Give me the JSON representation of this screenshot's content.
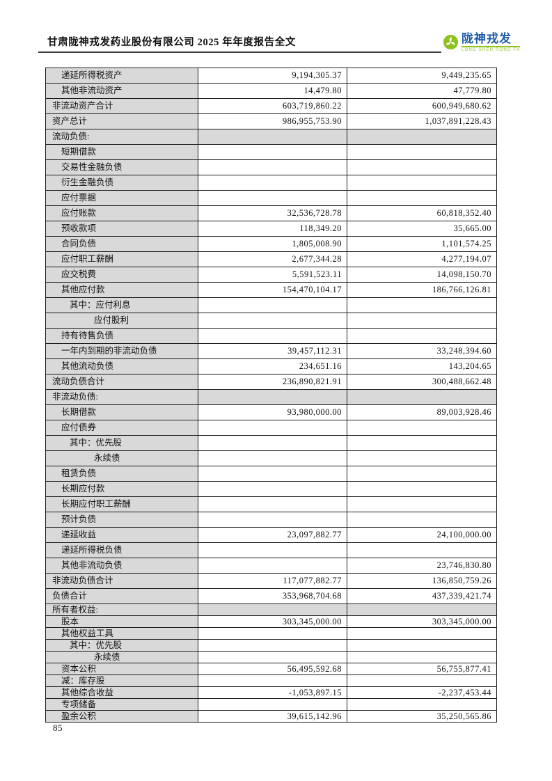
{
  "header": {
    "title": "甘肃陇神戎发药业股份有限公司 2025 年年度报告全文",
    "logo": {
      "icon": "pinwheel-leaf-icon",
      "name": "陇神戎发",
      "name_en": "LONG SHEN RONG FA"
    }
  },
  "colors": {
    "logo-green": "#8dc21f",
    "logo-blue": "#1e5aa8",
    "table-gray": "#d9d9d9"
  },
  "footer": {
    "page_number": "85"
  },
  "table": {
    "columns": [
      "item",
      "closing_balance",
      "opening_balance"
    ],
    "rows": [
      {
        "label": "递延所得税资产",
        "indent": 1,
        "type": "data",
        "compact": false,
        "current": "9,194,305.37",
        "prior": "9,449,235.65"
      },
      {
        "label": "其他非流动资产",
        "indent": 1,
        "type": "data",
        "compact": false,
        "current": "14,479.80",
        "prior": "47,779.80"
      },
      {
        "label": "非流动资产合计",
        "indent": 0,
        "type": "data",
        "compact": false,
        "current": "603,719,860.22",
        "prior": "600,949,680.62"
      },
      {
        "label": "资产总计",
        "indent": 0,
        "type": "data",
        "compact": false,
        "current": "986,955,753.90",
        "prior": "1,037,891,228.43"
      },
      {
        "label": "流动负债:",
        "indent": 0,
        "type": "section",
        "compact": false,
        "current": "",
        "prior": ""
      },
      {
        "label": "短期借款",
        "indent": 1,
        "type": "data",
        "compact": false,
        "current": "",
        "prior": ""
      },
      {
        "label": "交易性金融负债",
        "indent": 1,
        "type": "data",
        "compact": false,
        "current": "",
        "prior": ""
      },
      {
        "label": "衍生金融负债",
        "indent": 1,
        "type": "data",
        "compact": false,
        "current": "",
        "prior": ""
      },
      {
        "label": "应付票据",
        "indent": 1,
        "type": "data",
        "compact": false,
        "current": "",
        "prior": ""
      },
      {
        "label": "应付账款",
        "indent": 1,
        "type": "data",
        "compact": false,
        "current": "32,536,728.78",
        "prior": "60,818,352.40"
      },
      {
        "label": "预收款项",
        "indent": 1,
        "type": "data",
        "compact": false,
        "current": "118,349.20",
        "prior": "35,665.00"
      },
      {
        "label": "合同负债",
        "indent": 1,
        "type": "data",
        "compact": false,
        "current": "1,805,008.90",
        "prior": "1,101,574.25"
      },
      {
        "label": "应付职工薪酬",
        "indent": 1,
        "type": "data",
        "compact": false,
        "current": "2,677,344.28",
        "prior": "4,277,194.07"
      },
      {
        "label": "应交税费",
        "indent": 1,
        "type": "data",
        "compact": false,
        "current": "5,591,523.11",
        "prior": "14,098,150.70"
      },
      {
        "label": "其他应付款",
        "indent": 1,
        "type": "data",
        "compact": false,
        "current": "154,470,104.17",
        "prior": "186,766,126.81"
      },
      {
        "label": "其中：应付利息",
        "indent": 2,
        "type": "data",
        "compact": false,
        "current": "",
        "prior": ""
      },
      {
        "label": "应付股利",
        "indent": 3,
        "type": "data",
        "compact": false,
        "current": "",
        "prior": ""
      },
      {
        "label": "持有待售负债",
        "indent": 1,
        "type": "data",
        "compact": false,
        "current": "",
        "prior": ""
      },
      {
        "label": "一年内到期的非流动负债",
        "indent": 1,
        "type": "data",
        "compact": false,
        "current": "39,457,112.31",
        "prior": "33,248,394.60"
      },
      {
        "label": "其他流动负债",
        "indent": 1,
        "type": "data",
        "compact": false,
        "current": "234,651.16",
        "prior": "143,204.65"
      },
      {
        "label": "流动负债合计",
        "indent": 0,
        "type": "data",
        "compact": false,
        "current": "236,890,821.91",
        "prior": "300,488,662.48"
      },
      {
        "label": "非流动负债:",
        "indent": 0,
        "type": "section",
        "compact": false,
        "current": "",
        "prior": ""
      },
      {
        "label": "长期借款",
        "indent": 1,
        "type": "data",
        "compact": false,
        "current": "93,980,000.00",
        "prior": "89,003,928.46"
      },
      {
        "label": "应付债券",
        "indent": 1,
        "type": "data",
        "compact": false,
        "current": "",
        "prior": ""
      },
      {
        "label": "其中：优先股",
        "indent": 2,
        "type": "data",
        "compact": false,
        "current": "",
        "prior": ""
      },
      {
        "label": "永续债",
        "indent": 3,
        "type": "data",
        "compact": false,
        "current": "",
        "prior": ""
      },
      {
        "label": "租赁负债",
        "indent": 1,
        "type": "data",
        "compact": false,
        "current": "",
        "prior": ""
      },
      {
        "label": "长期应付款",
        "indent": 1,
        "type": "data",
        "compact": false,
        "current": "",
        "prior": ""
      },
      {
        "label": "长期应付职工薪酬",
        "indent": 1,
        "type": "data",
        "compact": false,
        "current": "",
        "prior": ""
      },
      {
        "label": "预计负债",
        "indent": 1,
        "type": "data",
        "compact": false,
        "current": "",
        "prior": ""
      },
      {
        "label": "递延收益",
        "indent": 1,
        "type": "data",
        "compact": false,
        "current": "23,097,882.77",
        "prior": "24,100,000.00"
      },
      {
        "label": "递延所得税负债",
        "indent": 1,
        "type": "data",
        "compact": false,
        "current": "",
        "prior": ""
      },
      {
        "label": "其他非流动负债",
        "indent": 1,
        "type": "data",
        "compact": false,
        "current": "",
        "prior": "23,746,830.80"
      },
      {
        "label": "非流动负债合计",
        "indent": 0,
        "type": "data",
        "compact": false,
        "current": "117,077,882.77",
        "prior": "136,850,759.26"
      },
      {
        "label": "负债合计",
        "indent": 0,
        "type": "data",
        "compact": false,
        "current": "353,968,704.68",
        "prior": "437,339,421.74"
      },
      {
        "label": "所有者权益:",
        "indent": 0,
        "type": "section",
        "compact": true,
        "current": "",
        "prior": ""
      },
      {
        "label": "股本",
        "indent": 1,
        "type": "data",
        "compact": true,
        "current": "303,345,000.00",
        "prior": "303,345,000.00"
      },
      {
        "label": "其他权益工具",
        "indent": 1,
        "type": "data",
        "compact": true,
        "current": "",
        "prior": ""
      },
      {
        "label": "其中：优先股",
        "indent": 2,
        "type": "data",
        "compact": true,
        "current": "",
        "prior": ""
      },
      {
        "label": "永续债",
        "indent": 3,
        "type": "data",
        "compact": true,
        "current": "",
        "prior": ""
      },
      {
        "label": "资本公积",
        "indent": 1,
        "type": "data",
        "compact": true,
        "current": "56,495,592.68",
        "prior": "56,755,877.41"
      },
      {
        "label": "减：库存股",
        "indent": 1,
        "type": "data",
        "compact": true,
        "current": "",
        "prior": ""
      },
      {
        "label": "其他综合收益",
        "indent": 1,
        "type": "data",
        "compact": true,
        "current": "-1,053,897.15",
        "prior": "-2,237,453.44"
      },
      {
        "label": "专项储备",
        "indent": 1,
        "type": "data",
        "compact": true,
        "current": "",
        "prior": ""
      },
      {
        "label": "盈余公积",
        "indent": 1,
        "type": "data",
        "compact": true,
        "current": "39,615,142.96",
        "prior": "35,250,565.86"
      }
    ]
  }
}
